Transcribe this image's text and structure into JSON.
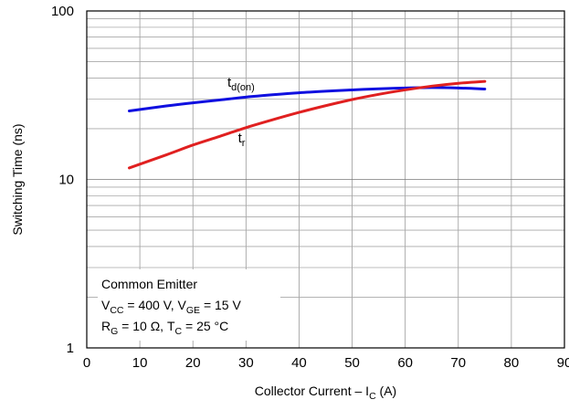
{
  "chart_data": {
    "type": "line",
    "title": "",
    "xlabel": {
      "main": "Collector Current – I",
      "sub": "C",
      "tail": " (A)"
    },
    "ylabel": "Switching Time (ns)",
    "xlim": [
      0,
      90
    ],
    "ylim": [
      1,
      100
    ],
    "yscale": "log",
    "grid": true,
    "x_ticks": [
      "0",
      "10",
      "20",
      "30",
      "40",
      "50",
      "60",
      "70",
      "80",
      "90"
    ],
    "y_ticks": [
      "1",
      "10",
      "100"
    ],
    "series": [
      {
        "name": "td(on)",
        "label": {
          "main": "t",
          "sub": "d(on)"
        },
        "color": "#1010e0",
        "x": [
          8,
          15,
          20,
          25,
          30,
          35,
          40,
          45,
          50,
          55,
          60,
          65,
          70,
          75
        ],
        "y": [
          25.5,
          27.3,
          28.5,
          29.6,
          30.8,
          31.8,
          32.7,
          33.4,
          34.0,
          34.5,
          34.9,
          35.1,
          34.9,
          34.4
        ]
      },
      {
        "name": "tr",
        "label": {
          "main": "t",
          "sub": "r"
        },
        "color": "#e02020",
        "x": [
          8,
          15,
          20,
          25,
          30,
          35,
          40,
          45,
          50,
          55,
          60,
          65,
          70,
          75
        ],
        "y": [
          11.7,
          14.0,
          16.0,
          18.0,
          20.3,
          22.6,
          25.0,
          27.4,
          29.8,
          32.0,
          34.0,
          35.8,
          37.2,
          38.2
        ]
      }
    ],
    "annotation": {
      "line1": "Common Emitter",
      "line2": [
        {
          "t": "V"
        },
        {
          "t": "CC",
          "sub": true
        },
        {
          "t": " = 400 V, V"
        },
        {
          "t": "GE",
          "sub": true
        },
        {
          "t": " = 15 V"
        }
      ],
      "line3": [
        {
          "t": "R"
        },
        {
          "t": "G",
          "sub": true
        },
        {
          "t": " = 10 Ω, T"
        },
        {
          "t": "C",
          "sub": true
        },
        {
          "t": " = 25 °C"
        }
      ]
    }
  }
}
